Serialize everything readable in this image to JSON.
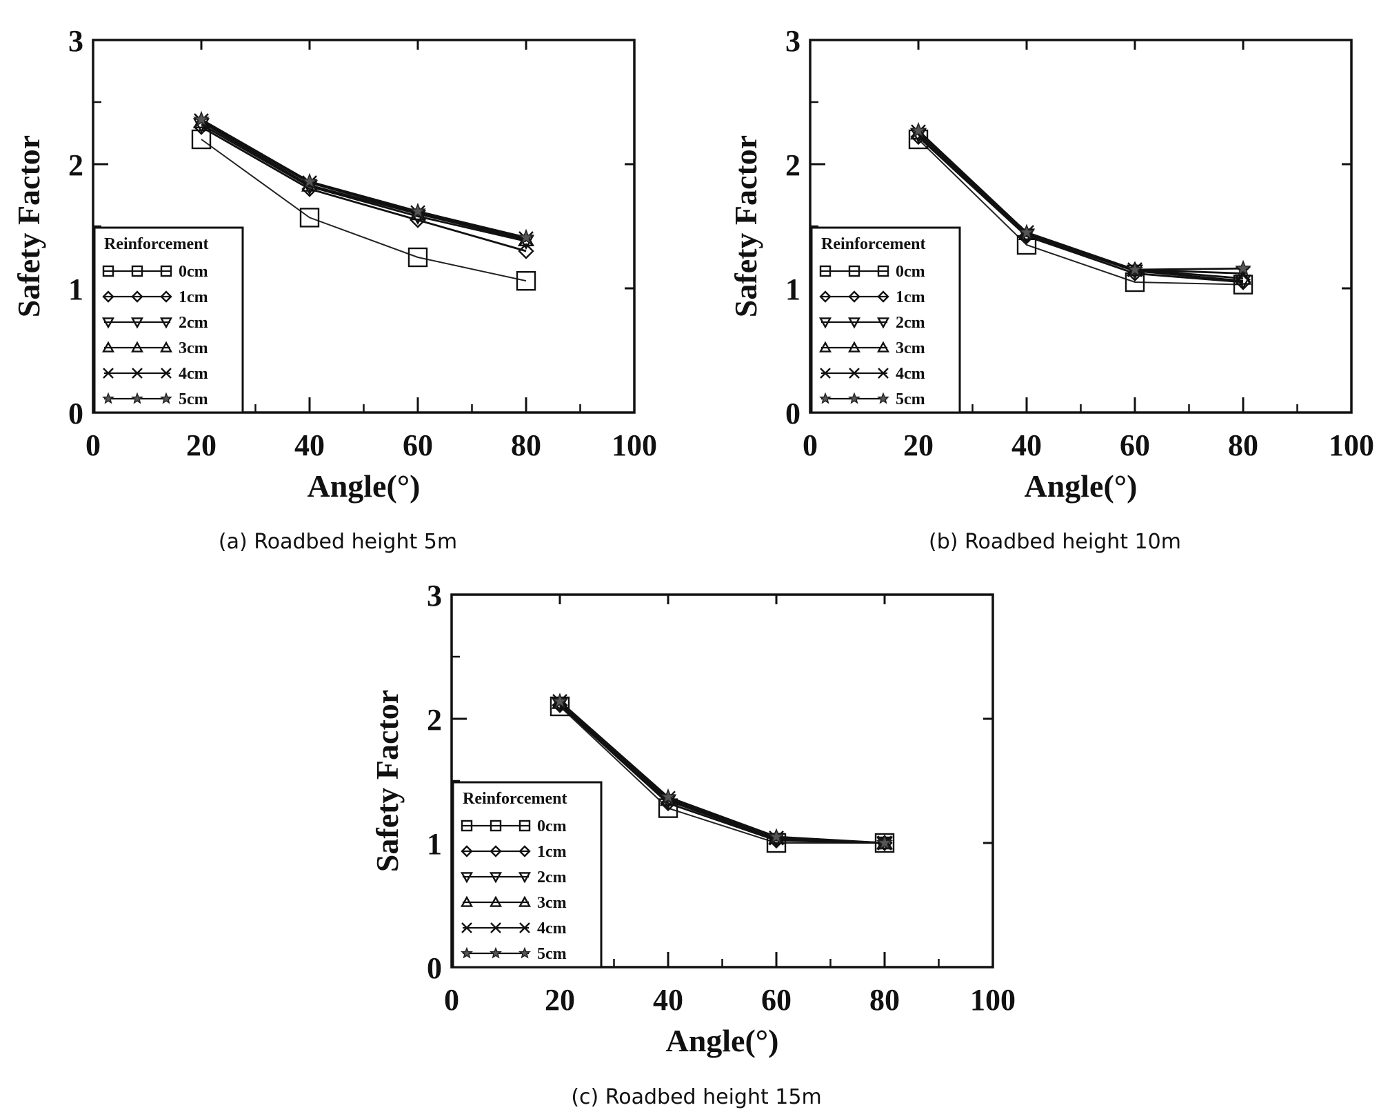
{
  "chart_data": [
    {
      "type": "line",
      "caption": "(a) Roadbed height 5m",
      "xlabel": "Angle(°)",
      "ylabel": "Safety Factor",
      "xlim": [
        0,
        100
      ],
      "ylim": [
        0,
        3
      ],
      "x_ticks": [
        "0",
        "20",
        "40",
        "60",
        "80",
        "100"
      ],
      "y_ticks": [
        "0",
        "1",
        "2",
        "3"
      ],
      "legend_title": "Reinforcement",
      "legend_position": "lower-left",
      "x": [
        20,
        40,
        60,
        80
      ],
      "series": [
        {
          "name": "0cm",
          "marker": "square",
          "values": [
            2.2,
            1.57,
            1.25,
            1.06
          ]
        },
        {
          "name": "1cm",
          "marker": "diamond",
          "values": [
            2.3,
            1.8,
            1.55,
            1.3
          ]
        },
        {
          "name": "2cm",
          "marker": "triangle-down",
          "values": [
            2.32,
            1.82,
            1.58,
            1.38
          ]
        },
        {
          "name": "3cm",
          "marker": "triangle-up",
          "values": [
            2.34,
            1.83,
            1.6,
            1.39
          ]
        },
        {
          "name": "4cm",
          "marker": "x",
          "values": [
            2.35,
            1.85,
            1.61,
            1.4
          ]
        },
        {
          "name": "5cm",
          "marker": "star",
          "values": [
            2.36,
            1.86,
            1.62,
            1.41
          ]
        }
      ]
    },
    {
      "type": "line",
      "caption": "(b) Roadbed height 10m",
      "xlabel": "Angle(°)",
      "ylabel": "Safety Factor",
      "xlim": [
        0,
        100
      ],
      "ylim": [
        0,
        3
      ],
      "x_ticks": [
        "0",
        "20",
        "40",
        "60",
        "80",
        "100"
      ],
      "y_ticks": [
        "0",
        "1",
        "2",
        "3"
      ],
      "legend_title": "Reinforcement",
      "legend_position": "lower-left",
      "x": [
        20,
        40,
        60,
        80
      ],
      "series": [
        {
          "name": "0cm",
          "marker": "square",
          "values": [
            2.2,
            1.35,
            1.05,
            1.03
          ]
        },
        {
          "name": "1cm",
          "marker": "diamond",
          "values": [
            2.22,
            1.42,
            1.12,
            1.05
          ]
        },
        {
          "name": "2cm",
          "marker": "triangle-down",
          "values": [
            2.24,
            1.43,
            1.14,
            1.06
          ]
        },
        {
          "name": "3cm",
          "marker": "triangle-up",
          "values": [
            2.25,
            1.44,
            1.15,
            1.08
          ]
        },
        {
          "name": "4cm",
          "marker": "x",
          "values": [
            2.26,
            1.45,
            1.15,
            1.12
          ]
        },
        {
          "name": "5cm",
          "marker": "star",
          "values": [
            2.27,
            1.45,
            1.15,
            1.16
          ]
        }
      ]
    },
    {
      "type": "line",
      "caption": "(c) Roadbed height 15m",
      "xlabel": "Angle(°)",
      "ylabel": "Safety Factor",
      "xlim": [
        0,
        100
      ],
      "ylim": [
        0,
        3
      ],
      "x_ticks": [
        "0",
        "20",
        "40",
        "60",
        "80",
        "100"
      ],
      "y_ticks": [
        "0",
        "1",
        "2",
        "3"
      ],
      "legend_title": "Reinforcement",
      "legend_position": "lower-left",
      "x": [
        20,
        40,
        60,
        80
      ],
      "series": [
        {
          "name": "0cm",
          "marker": "square",
          "values": [
            2.1,
            1.28,
            1.0,
            1.0
          ]
        },
        {
          "name": "1cm",
          "marker": "diamond",
          "values": [
            2.11,
            1.32,
            1.02,
            1.0
          ]
        },
        {
          "name": "2cm",
          "marker": "triangle-down",
          "values": [
            2.12,
            1.34,
            1.03,
            1.0
          ]
        },
        {
          "name": "3cm",
          "marker": "triangle-up",
          "values": [
            2.13,
            1.35,
            1.04,
            1.0
          ]
        },
        {
          "name": "4cm",
          "marker": "x",
          "values": [
            2.14,
            1.36,
            1.04,
            1.0
          ]
        },
        {
          "name": "5cm",
          "marker": "star",
          "values": [
            2.14,
            1.37,
            1.05,
            1.0
          ]
        }
      ]
    }
  ]
}
